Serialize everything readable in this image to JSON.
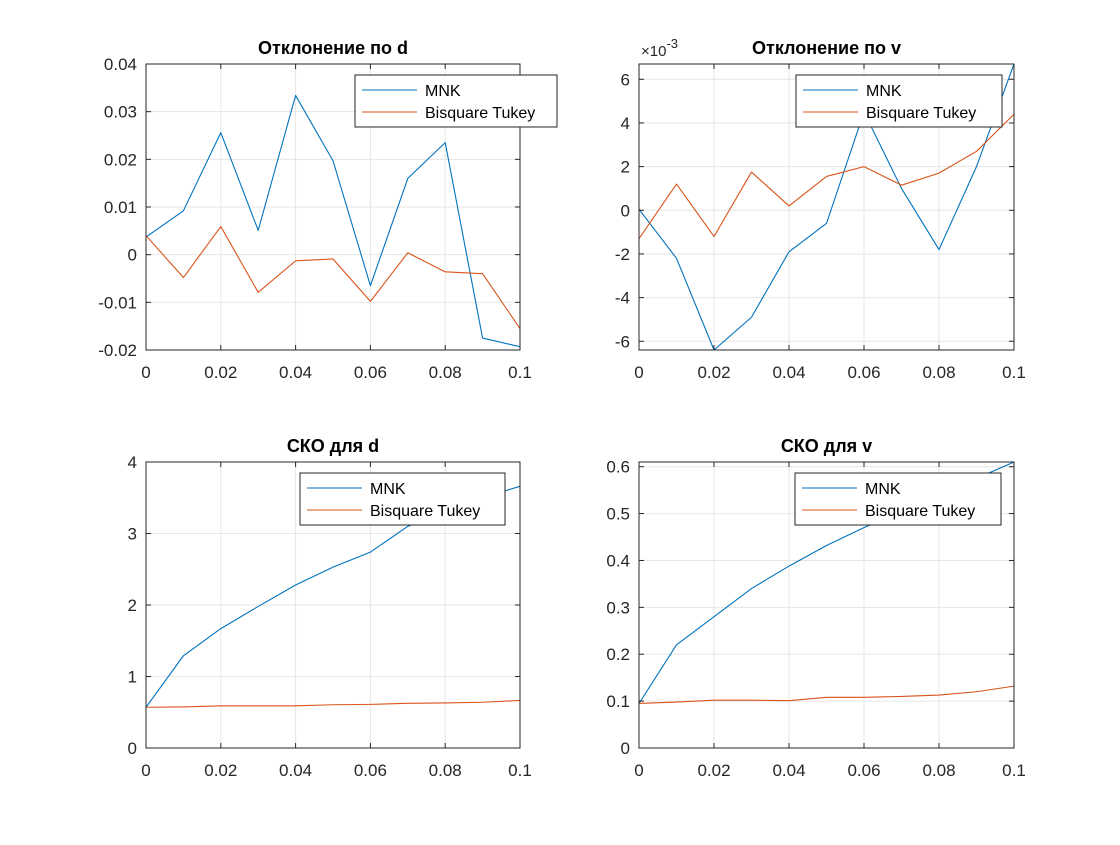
{
  "colors": {
    "mnk": "#0072BD",
    "tukey": "#D95319",
    "grid": "#e6e6e6",
    "axis": "#262626",
    "background": "#ffffff"
  },
  "legend": {
    "mnk": "MNK",
    "tukey": "Bisquare Tukey"
  },
  "chart_data": [
    {
      "type": "line",
      "title": "Отклонение по d",
      "xlabel": "",
      "ylabel": "",
      "xlim": [
        0,
        0.1
      ],
      "ylim": [
        -0.02,
        0.04
      ],
      "x_ticks": [
        0,
        0.02,
        0.04,
        0.06,
        0.08,
        0.1
      ],
      "x_tick_labels": [
        "0",
        "0.02",
        "0.04",
        "0.06",
        "0.08",
        "0.1"
      ],
      "y_ticks": [
        -0.02,
        -0.01,
        0,
        0.01,
        0.02,
        0.03,
        0.04
      ],
      "y_tick_labels": [
        "-0.02",
        "-0.01",
        "0",
        "0.01",
        "0.02",
        "0.03",
        "0.04"
      ],
      "exponent_label": "",
      "legend_position": "top-right",
      "grid": true,
      "x": [
        0,
        0.01,
        0.02,
        0.03,
        0.04,
        0.05,
        0.06,
        0.07,
        0.08,
        0.09,
        0.1
      ],
      "series": [
        {
          "name": "MNK",
          "values": [
            0.0037,
            0.0092,
            0.0256,
            0.0051,
            0.0334,
            0.0197,
            -0.0065,
            0.016,
            0.0235,
            -0.0175,
            -0.0193
          ]
        },
        {
          "name": "Bisquare Tukey",
          "values": [
            0.004,
            -0.0048,
            0.0059,
            -0.0079,
            -0.0013,
            -0.0009,
            -0.0098,
            0.0004,
            -0.0036,
            -0.004,
            -0.0155
          ]
        }
      ]
    },
    {
      "type": "line",
      "title": "Отклонение по v",
      "xlabel": "",
      "ylabel": "",
      "xlim": [
        0,
        0.1
      ],
      "ylim": [
        -6.4,
        6.7
      ],
      "x_ticks": [
        0,
        0.02,
        0.04,
        0.06,
        0.08,
        0.1
      ],
      "x_tick_labels": [
        "0",
        "0.02",
        "0.04",
        "0.06",
        "0.08",
        "0.1"
      ],
      "y_ticks": [
        -6,
        -4,
        -2,
        0,
        2,
        4,
        6
      ],
      "y_tick_labels": [
        "-6",
        "-4",
        "-2",
        "0",
        "2",
        "4",
        "6"
      ],
      "exponent_label": "×10",
      "exponent_power": "-3",
      "legend_position": "top-right",
      "grid": true,
      "x": [
        0,
        0.01,
        0.02,
        0.03,
        0.04,
        0.05,
        0.06,
        0.07,
        0.08,
        0.09,
        0.1
      ],
      "series": [
        {
          "name": "MNK",
          "values": [
            0.05,
            -2.2,
            -6.4,
            -4.9,
            -1.9,
            -0.6,
            4.5,
            1.0,
            -1.8,
            2.0,
            6.7
          ]
        },
        {
          "name": "Bisquare Tukey",
          "values": [
            -1.3,
            1.2,
            -1.2,
            1.75,
            0.2,
            1.55,
            2.0,
            1.15,
            1.7,
            2.7,
            4.4
          ]
        }
      ]
    },
    {
      "type": "line",
      "title": "СКО для d",
      "xlabel": "",
      "ylabel": "",
      "xlim": [
        0,
        0.1
      ],
      "ylim": [
        0,
        4
      ],
      "x_ticks": [
        0,
        0.02,
        0.04,
        0.06,
        0.08,
        0.1
      ],
      "x_tick_labels": [
        "0",
        "0.02",
        "0.04",
        "0.06",
        "0.08",
        "0.1"
      ],
      "y_ticks": [
        0,
        1,
        2,
        3,
        4
      ],
      "y_tick_labels": [
        "0",
        "1",
        "2",
        "3",
        "4"
      ],
      "exponent_label": "",
      "legend_position": "top-right",
      "grid": true,
      "x": [
        0,
        0.01,
        0.02,
        0.03,
        0.04,
        0.05,
        0.06,
        0.07,
        0.08,
        0.09,
        0.1
      ],
      "series": [
        {
          "name": "MNK",
          "values": [
            0.57,
            1.29,
            1.67,
            1.98,
            2.28,
            2.53,
            2.74,
            3.1,
            3.3,
            3.5,
            3.66
          ]
        },
        {
          "name": "Bisquare Tukey",
          "values": [
            0.57,
            0.575,
            0.59,
            0.59,
            0.59,
            0.605,
            0.61,
            0.625,
            0.63,
            0.64,
            0.665
          ]
        }
      ]
    },
    {
      "type": "line",
      "title": "СКО для v",
      "xlabel": "",
      "ylabel": "",
      "xlim": [
        0,
        0.1
      ],
      "ylim": [
        0,
        0.61
      ],
      "x_ticks": [
        0,
        0.02,
        0.04,
        0.06,
        0.08,
        0.1
      ],
      "x_tick_labels": [
        "0",
        "0.02",
        "0.04",
        "0.06",
        "0.08",
        "0.1"
      ],
      "y_ticks": [
        0,
        0.1,
        0.2,
        0.3,
        0.4,
        0.5,
        0.6
      ],
      "y_tick_labels": [
        "0",
        "0.1",
        "0.2",
        "0.3",
        "0.4",
        "0.5",
        "0.6"
      ],
      "exponent_label": "",
      "legend_position": "top-right",
      "grid": true,
      "x": [
        0,
        0.01,
        0.02,
        0.03,
        0.04,
        0.05,
        0.06,
        0.07,
        0.08,
        0.09,
        0.1
      ],
      "series": [
        {
          "name": "MNK",
          "values": [
            0.095,
            0.22,
            0.28,
            0.34,
            0.388,
            0.432,
            0.47,
            0.505,
            0.54,
            0.575,
            0.61
          ]
        },
        {
          "name": "Bisquare Tukey",
          "values": [
            0.095,
            0.098,
            0.102,
            0.102,
            0.101,
            0.108,
            0.108,
            0.11,
            0.113,
            0.12,
            0.132
          ]
        }
      ]
    }
  ]
}
